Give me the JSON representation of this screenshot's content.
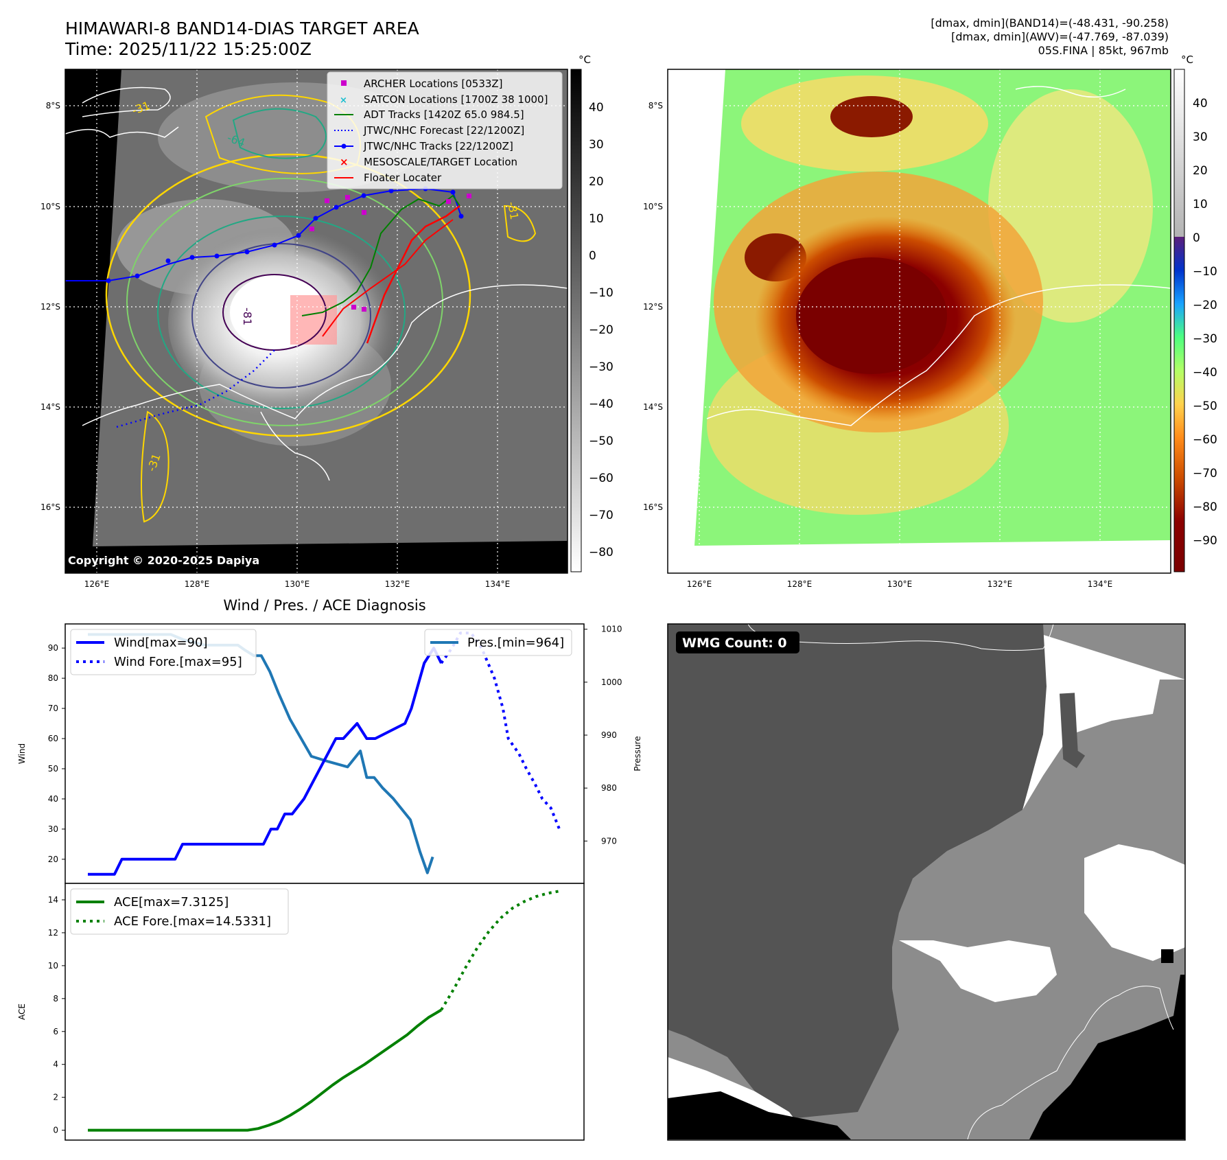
{
  "header": {
    "title_line1": "HIMAWARI-8 BAND14-DIAS TARGET AREA",
    "title_line2": "Time: 2025/11/22 15:25:00Z",
    "right_line1": "[dmax, dmin](BAND14)=(-48.431, -90.258)",
    "right_line2": "[dmax, dmin](AWV)=(-47.769, -87.039)",
    "right_line3": "05S.FINA | 85kt, 967mb"
  },
  "panel_ir": {
    "copyright": "Copyright © 2020-2025 Dapiya",
    "lon_labels": [
      "126°E",
      "128°E",
      "130°E",
      "132°E",
      "134°E"
    ],
    "lat_labels": [
      "8°S",
      "10°S",
      "12°S",
      "14°S",
      "16°S"
    ],
    "contour_labels": [
      "-81",
      "-31",
      "-64",
      "-31",
      "-31"
    ],
    "legend": [
      {
        "label": "ARCHER Locations [0533Z]",
        "color": "#cc00cc",
        "kind": "square"
      },
      {
        "label": "SATCON Locations [1700Z 38 1000]",
        "color": "#17becf",
        "kind": "x"
      },
      {
        "label": "ADT Tracks [1420Z 65.0 984.5]",
        "color": "#008000",
        "kind": "line"
      },
      {
        "label": "JTWC/NHC Forecast [22/1200Z]",
        "color": "#0000ff",
        "kind": "dotted"
      },
      {
        "label": "JTWC/NHC Tracks [22/1200Z]",
        "color": "#0000ff",
        "kind": "line-dot"
      },
      {
        "label": "MESOSCALE/TARGET Location",
        "color": "#ff0000",
        "kind": "x"
      },
      {
        "label": "Floater Locater",
        "color": "#ff0000",
        "kind": "line"
      }
    ],
    "colorbar_unit": "°C",
    "colorbar_ticks": [
      "40",
      "30",
      "20",
      "10",
      "0",
      "−10",
      "−20",
      "−30",
      "−40",
      "−50",
      "−60",
      "−70",
      "−80"
    ]
  },
  "panel_awv": {
    "lon_labels": [
      "126°E",
      "128°E",
      "130°E",
      "132°E",
      "134°E"
    ],
    "lat_labels": [
      "8°S",
      "10°S",
      "12°S",
      "14°S",
      "16°S"
    ],
    "colorbar_unit": "°C",
    "colorbar_ticks": [
      "40",
      "30",
      "20",
      "10",
      "0",
      "−10",
      "−20",
      "−30",
      "−40",
      "−50",
      "−60",
      "−70",
      "−80",
      "−90"
    ]
  },
  "panel_wmg": {
    "badge": "WMG Count: 0"
  },
  "chart_data": [
    {
      "type": "line",
      "title": "Wind / Pres. / ACE Diagnosis",
      "ylabel": "Wind",
      "ylabel_right": "Pressure",
      "ylim": [
        12,
        98
      ],
      "ylim_right": [
        962,
        1011
      ],
      "y_ticks": [
        20,
        30,
        40,
        50,
        60,
        70,
        80,
        90
      ],
      "y_ticks_right": [
        970,
        980,
        990,
        1000,
        1010
      ],
      "x_range": [
        0,
        45
      ],
      "series": [
        {
          "name": "Wind[max=90]",
          "color": "#0000ff",
          "style": "solid",
          "x": [
            0,
            2.5,
            3.2,
            8.2,
            8.9,
            16.5,
            17.2,
            17.8,
            18.5,
            19.2,
            20.3,
            23.3,
            24.0,
            25.3,
            26.2,
            27.0,
            29.8,
            30.4,
            31.6,
            32.5,
            33.2
          ],
          "y": [
            15,
            15,
            20,
            20,
            25,
            25,
            30,
            30,
            35,
            35,
            40,
            60,
            60,
            65,
            60,
            60,
            65,
            70,
            85,
            90,
            85
          ]
        },
        {
          "name": "Wind Fore.[max=95]",
          "color": "#0000ff",
          "style": "dotted",
          "x": [
            33.2,
            34.2,
            35.0,
            36.0,
            37.0,
            38.2,
            39.0,
            39.5,
            40.5,
            41.2,
            42.0,
            42.7,
            43.5,
            44.3
          ],
          "y": [
            85,
            90,
            95,
            95,
            90,
            80,
            70,
            60,
            55,
            50,
            45,
            40,
            37,
            30
          ]
        },
        {
          "name": "Pres.[min=964]",
          "color": "#1f77b4",
          "style": "solid",
          "axis": "right",
          "x": [
            0,
            4.6,
            7.8,
            9.0,
            11.0,
            14.1,
            14.8,
            15.6,
            16.3,
            17.1,
            17.9,
            19.0,
            21.0,
            22.6,
            24.4,
            25.6,
            26.2,
            26.9,
            27.7,
            28.7,
            30.3,
            31.2,
            31.9,
            32.4
          ],
          "y": [
            1009,
            1009,
            1009,
            1008,
            1007,
            1007,
            1006,
            1005,
            1005,
            1002,
            998,
            993,
            986,
            985,
            984,
            987,
            982,
            982,
            980,
            978,
            974,
            968,
            964,
            967
          ]
        }
      ]
    },
    {
      "type": "line",
      "ylabel": "ACE",
      "ylim": [
        -0.6,
        15
      ],
      "y_ticks": [
        0,
        2,
        4,
        6,
        8,
        10,
        12,
        14
      ],
      "x_range": [
        0,
        45
      ],
      "series": [
        {
          "name": "ACE[max=7.3125]",
          "color": "#008000",
          "style": "solid",
          "x": [
            0,
            15,
            16,
            17,
            18,
            19,
            20,
            21,
            22,
            23,
            24,
            25,
            26,
            27,
            28,
            29,
            30,
            31,
            32,
            33.2
          ],
          "y": [
            0,
            0,
            0.1,
            0.3,
            0.55,
            0.9,
            1.3,
            1.75,
            2.25,
            2.75,
            3.2,
            3.6,
            4.0,
            4.45,
            4.9,
            5.35,
            5.8,
            6.35,
            6.85,
            7.31
          ]
        },
        {
          "name": "ACE Fore.[max=14.5331]",
          "color": "#008000",
          "style": "dotted",
          "x": [
            33.2,
            34.4,
            35.5,
            36.6,
            37.7,
            38.8,
            39.9,
            41.0,
            42.1,
            43.2,
            44.3
          ],
          "y": [
            7.31,
            8.6,
            9.9,
            11.1,
            12.1,
            12.9,
            13.5,
            13.9,
            14.2,
            14.4,
            14.53
          ]
        }
      ]
    }
  ]
}
